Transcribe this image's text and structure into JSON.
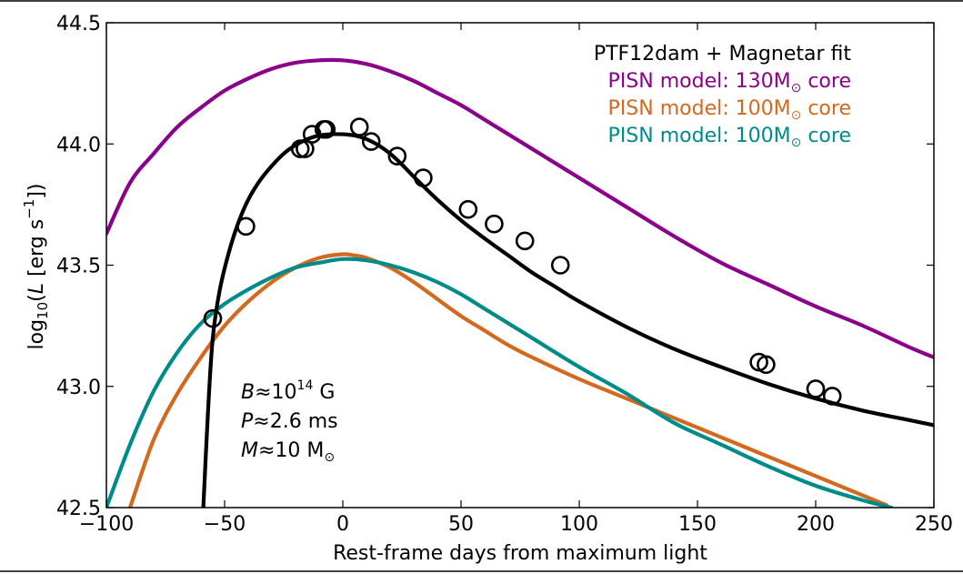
{
  "chart_data": {
    "type": "line",
    "xlabel": "Rest-frame days from maximum light",
    "ylabel": "log10(L [erg s−1])",
    "ylabel_parts": {
      "log": "log",
      "sub": "10",
      "open": "(",
      "L": "L",
      "unit": " [erg s",
      "exp": "−1",
      "close": "])"
    },
    "xlim": [
      -100,
      250
    ],
    "ylim": [
      42.5,
      44.5
    ],
    "xticks": [
      -100,
      -50,
      0,
      50,
      100,
      150,
      200,
      250
    ],
    "xtick_labels": [
      "−100",
      "−50",
      "0",
      "50",
      "100",
      "150",
      "200",
      "250"
    ],
    "yticks": [
      42.5,
      43.0,
      43.5,
      44.0,
      44.5
    ],
    "ytick_labels": [
      "42.5",
      "43.0",
      "43.5",
      "44.0",
      "44.5"
    ],
    "legend_position": "top-right",
    "legend": [
      {
        "text": "PTF12dam + Magnetar fit",
        "sym": "",
        "suffix": "",
        "color": "#000000"
      },
      {
        "text": "PISN model: 130M",
        "sym": "⊙",
        "suffix": " core",
        "color": "#8b008b"
      },
      {
        "text": "PISN model: 100M",
        "sym": "⊙",
        "suffix": " core",
        "color": "#d2691e"
      },
      {
        "text": "PISN model: 100M",
        "sym": "⊙",
        "suffix": " core",
        "color": "#008b8b"
      }
    ],
    "annotations": {
      "B": {
        "var": "B",
        "approx": "≈",
        "value": "10",
        "exp": "14",
        "unit": " G"
      },
      "P": {
        "var": "P",
        "approx": "≈",
        "value": "2.6 ms"
      },
      "M": {
        "var": "M",
        "approx": "≈",
        "value": "10 M",
        "sym": "⊙"
      }
    },
    "series": [
      {
        "name": "PISN model: 130M core",
        "color": "#8b008b",
        "x": [
          -100,
          -90,
          -80,
          -70,
          -60,
          -50,
          -40,
          -30,
          -20,
          -10,
          0,
          10,
          20,
          30,
          40,
          50,
          60,
          70,
          80,
          100,
          120,
          140,
          160,
          180,
          200,
          220,
          240,
          250
        ],
        "y": [
          43.63,
          43.84,
          43.96,
          44.07,
          44.15,
          44.22,
          44.27,
          44.31,
          44.335,
          44.345,
          44.345,
          44.33,
          44.3,
          44.26,
          44.21,
          44.16,
          44.1,
          44.04,
          43.98,
          43.86,
          43.74,
          43.62,
          43.51,
          43.42,
          43.33,
          43.25,
          43.16,
          43.12
        ]
      },
      {
        "name": "PISN model: 100M core (orange)",
        "color": "#d2691e",
        "x": [
          -90,
          -80,
          -70,
          -60,
          -50,
          -40,
          -30,
          -20,
          -10,
          0,
          5,
          10,
          20,
          30,
          40,
          50,
          60,
          70,
          80,
          100,
          120,
          140,
          160,
          180,
          200,
          220,
          230
        ],
        "y": [
          42.5,
          42.78,
          42.97,
          43.12,
          43.25,
          43.35,
          43.43,
          43.49,
          43.53,
          43.545,
          43.54,
          43.53,
          43.49,
          43.43,
          43.36,
          43.29,
          43.23,
          43.17,
          43.12,
          43.03,
          42.95,
          42.87,
          42.79,
          42.71,
          42.63,
          42.55,
          42.51
        ]
      },
      {
        "name": "PISN model: 100M core (teal)",
        "color": "#008b8b",
        "x": [
          -100,
          -90,
          -80,
          -70,
          -60,
          -50,
          -40,
          -30,
          -20,
          -10,
          0,
          10,
          20,
          30,
          40,
          50,
          60,
          70,
          80,
          100,
          120,
          140,
          160,
          180,
          200,
          220,
          232
        ],
        "y": [
          42.5,
          42.76,
          42.98,
          43.14,
          43.26,
          43.34,
          43.4,
          43.45,
          43.49,
          43.51,
          43.525,
          43.52,
          43.5,
          43.47,
          43.43,
          43.38,
          43.32,
          43.26,
          43.2,
          43.08,
          42.97,
          42.85,
          42.76,
          42.67,
          42.59,
          42.53,
          42.5
        ]
      },
      {
        "name": "PTF12dam + Magnetar fit",
        "color": "#000000",
        "x": [
          -59,
          -57,
          -55,
          -52,
          -48,
          -44,
          -40,
          -35,
          -30,
          -25,
          -20,
          -15,
          -10,
          -5,
          0,
          5,
          10,
          15,
          20,
          25,
          30,
          40,
          50,
          60,
          70,
          80,
          90,
          100,
          120,
          140,
          160,
          180,
          200,
          220,
          240,
          250
        ],
        "y": [
          42.5,
          42.9,
          43.2,
          43.4,
          43.56,
          43.68,
          43.77,
          43.85,
          43.91,
          43.96,
          43.995,
          44.02,
          44.035,
          44.04,
          44.04,
          44.035,
          44.02,
          43.995,
          43.96,
          43.915,
          43.865,
          43.77,
          43.685,
          43.61,
          43.54,
          43.47,
          43.41,
          43.35,
          43.245,
          43.155,
          43.08,
          43.01,
          42.95,
          42.9,
          42.86,
          42.84
        ]
      }
    ],
    "observations": {
      "name": "PTF12dam data",
      "x": [
        -55,
        -41,
        -18,
        -16,
        -13,
        -8,
        -7,
        7,
        12,
        23,
        34,
        53,
        64,
        77,
        92,
        176,
        179,
        200,
        207
      ],
      "y": [
        43.28,
        43.66,
        43.98,
        43.98,
        44.04,
        44.06,
        44.06,
        44.07,
        44.01,
        43.95,
        43.86,
        43.73,
        43.67,
        43.6,
        43.5,
        43.1,
        43.09,
        42.99,
        42.96
      ]
    }
  }
}
